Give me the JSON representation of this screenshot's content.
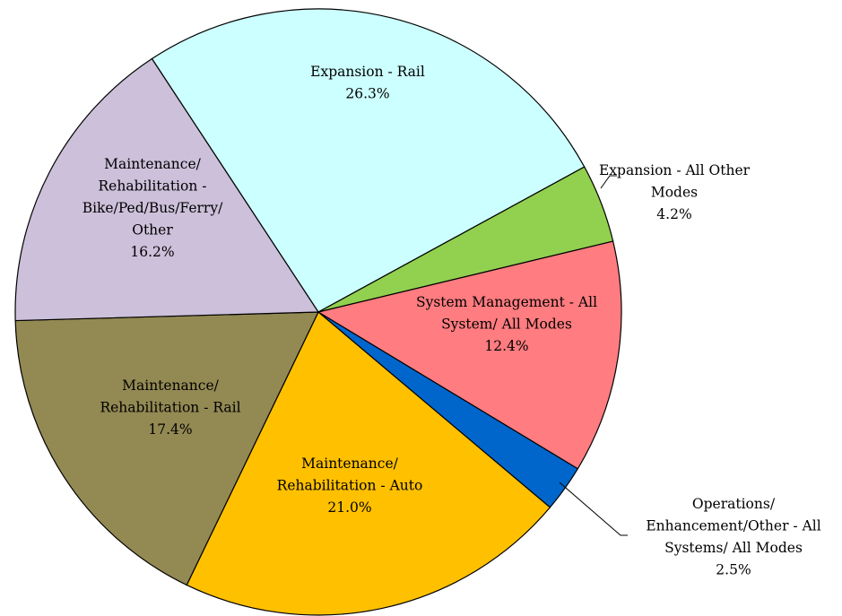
{
  "chart_data": {
    "type": "pie",
    "categories": [
      "Expansion - Rail",
      "Expansion - All Other\nModes",
      "System Management - All\nSystem/ All Modes",
      "Operations/\nEnhancement/Other - All\nSystems/ All Modes",
      "Maintenance/\nRehabilitation - Auto",
      "Maintenance/\nRehabilitation - Rail",
      "Maintenance/\nRehabilitation -\nBike/Ped/Bus/Ferry/\nOther"
    ],
    "values": [
      26.3,
      4.2,
      12.4,
      2.5,
      21.0,
      17.4,
      16.2
    ],
    "value_labels": [
      "26.3%",
      "4.2%",
      "12.4%",
      "2.5%",
      "21.0%",
      "17.4%",
      "16.2%"
    ],
    "colors": [
      "#ccffff",
      "#92d050",
      "#ff7c80",
      "#0066cc",
      "#ffc000",
      "#938953",
      "#ccc0da"
    ]
  }
}
